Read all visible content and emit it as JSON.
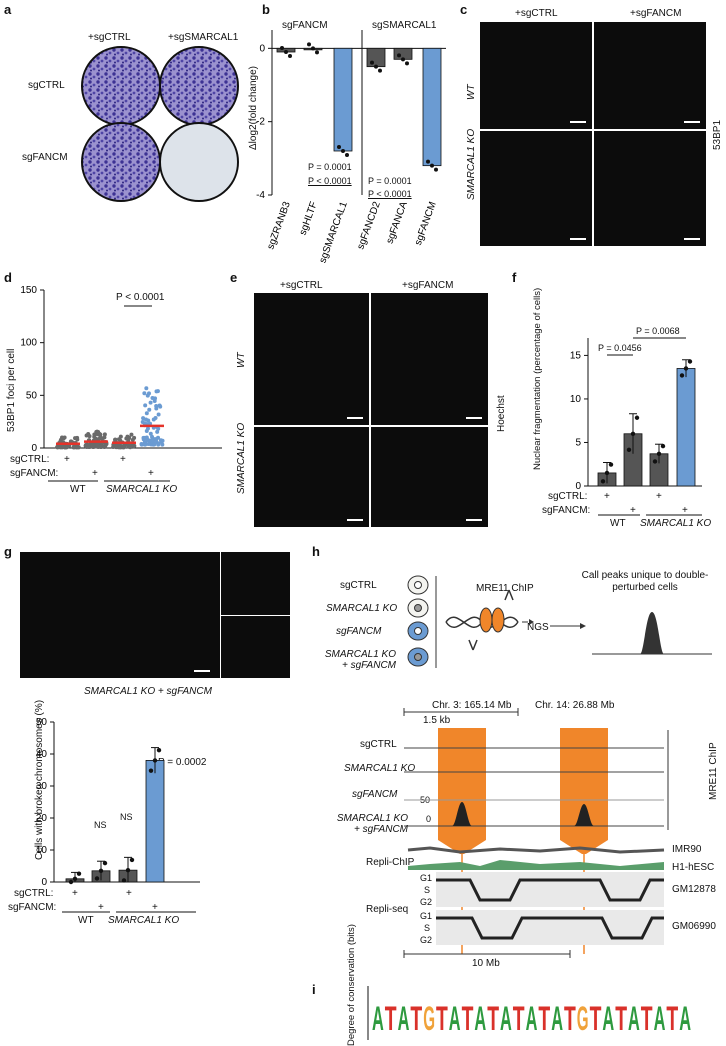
{
  "panels": {
    "a": "a",
    "b": "b",
    "c": "c",
    "d": "d",
    "e": "e",
    "f": "f",
    "g": "g",
    "h": "h",
    "i": "i"
  },
  "a": {
    "col_labels": [
      "+sgCTRL",
      "+sgSMARCAL1"
    ],
    "row_labels": [
      "sgCTRL",
      "sgFANCM"
    ]
  },
  "b": {
    "group_titles": [
      "sgFANCM",
      "sgSMARCAL1"
    ],
    "ylabel": "Δlog2(fold change)",
    "p_values": [
      "P = 0.0001",
      "P < 0.0001",
      "P = 0.0001",
      "P < 0.0001"
    ]
  },
  "c": {
    "col_labels": [
      "+sgCTRL",
      "+sgFANCM"
    ],
    "row_labels": [
      "WT",
      "SMARCAL1 KO"
    ],
    "side_label": "53BP1"
  },
  "d": {
    "ylabel": "53BP1 foci per cell",
    "p_value": "P < 0.0001",
    "row_labels": [
      "sgCTRL:",
      "sgFANCM:"
    ],
    "plus": "+",
    "genotypes": [
      "WT",
      "SMARCAL1 KO"
    ]
  },
  "e": {
    "col_labels": [
      "+sgCTRL",
      "+sgFANCM"
    ],
    "row_labels": [
      "WT",
      "SMARCAL1 KO"
    ],
    "side_label": "Hoechst"
  },
  "f": {
    "ylabel": "Nuclear fragmentation (percentage of cells)",
    "p_values": [
      "P = 0.0068",
      "P = 0.0456"
    ],
    "row_labels": [
      "sgCTRL:",
      "sgFANCM:"
    ],
    "plus": "+",
    "genotypes": [
      "WT",
      "SMARCAL1 KO"
    ]
  },
  "g": {
    "image_caption": "SMARCAL1 KO + sgFANCM",
    "ylabel": "Cells with broken chromosomes (%)",
    "p_value": "P = 0.0002",
    "ns": "NS",
    "row_labels": [
      "sgCTRL:",
      "sgFANCM:"
    ],
    "plus": "+",
    "genotypes": [
      "WT",
      "SMARCAL1 KO"
    ]
  },
  "h": {
    "schematic_cells": [
      "sgCTRL",
      "SMARCAL1 KO",
      "sgFANCM",
      "SMARCAL1 KO + sgFANCM"
    ],
    "chip_label": "MRE11 ChIP",
    "ngs_label": "NGS",
    "call_peaks": "Call peaks unique to double-perturbed cells",
    "loci": [
      "Chr. 3: 165.14 Mb",
      "Chr. 14: 26.88 Mb"
    ],
    "scale_small": "1.5 kb",
    "scale_large": "10 Mb",
    "tracks": [
      "sgCTRL",
      "SMARCAL1 KO",
      "sgFANCM",
      "SMARCAL1 KO + sgFANCM"
    ],
    "track_axis": [
      "50",
      "0"
    ],
    "track_side": "MRE11 ChIP",
    "repli_chip": "Repli-ChIP",
    "repli_chip_lines": [
      "IMR90",
      "H1-hESC"
    ],
    "repli_seq": "Repli-seq",
    "phases": [
      "G1",
      "S",
      "G2"
    ],
    "repli_seq_lines": [
      "GM12878",
      "GM06990"
    ]
  },
  "i": {
    "ylabel": "Degree of conservation (bits)",
    "sequence": "ATATGTATATATATATGTATATATA"
  },
  "chart_data": [
    {
      "type": "bar",
      "panel": "b",
      "categories": [
        "sgZRANB3",
        "sgHLTF",
        "sgSMARCAL1",
        "sgFANCD2",
        "sgFANCA",
        "sgFANCM"
      ],
      "values": [
        -0.1,
        0,
        -2.8,
        -0.5,
        -0.3,
        -3.2
      ],
      "ylabel": "Δlog2(fold change)",
      "ylim": [
        -4,
        0.5
      ],
      "yticks": [
        0,
        -2,
        -4
      ]
    },
    {
      "type": "scatter",
      "panel": "d",
      "categories": [
        "WT sgCTRL",
        "WT sgFANCM",
        "SMARCAL1 KO sgCTRL",
        "SMARCAL1 KO sgFANCM"
      ],
      "medians": [
        4,
        6,
        5,
        21
      ],
      "ylabel": "53BP1 foci per cell",
      "ylim": [
        0,
        150
      ],
      "yticks": [
        0,
        50,
        100,
        150
      ]
    },
    {
      "type": "bar",
      "panel": "f",
      "categories": [
        "WT sgCTRL",
        "WT sgFANCM",
        "SMARCAL1 KO sgCTRL",
        "SMARCAL1 KO sgFANCM"
      ],
      "values": [
        1.5,
        6.0,
        3.7,
        13.5
      ],
      "errors": [
        1.2,
        2.3,
        1.1,
        1.0
      ],
      "ylabel": "Nuclear fragmentation (percentage of cells)",
      "ylim": [
        0,
        17
      ],
      "yticks": [
        0,
        5,
        10,
        15
      ]
    },
    {
      "type": "bar",
      "panel": "g",
      "categories": [
        "WT sgCTRL",
        "WT sgFANCM",
        "SMARCAL1 KO sgCTRL",
        "SMARCAL1 KO sgFANCM"
      ],
      "values": [
        1.0,
        3.5,
        3.7,
        38.0
      ],
      "errors": [
        2.0,
        3.0,
        4.0,
        4.0
      ],
      "ylabel": "Cells with broken chromosomes (%)",
      "ylim": [
        0,
        50
      ],
      "yticks": [
        0,
        10,
        20,
        30,
        40,
        50
      ]
    }
  ],
  "colors": {
    "blue": "#6b9bd2",
    "dark_gray": "#555555",
    "orange": "#f0862a",
    "crystal_violet": "#4a3f9e"
  }
}
